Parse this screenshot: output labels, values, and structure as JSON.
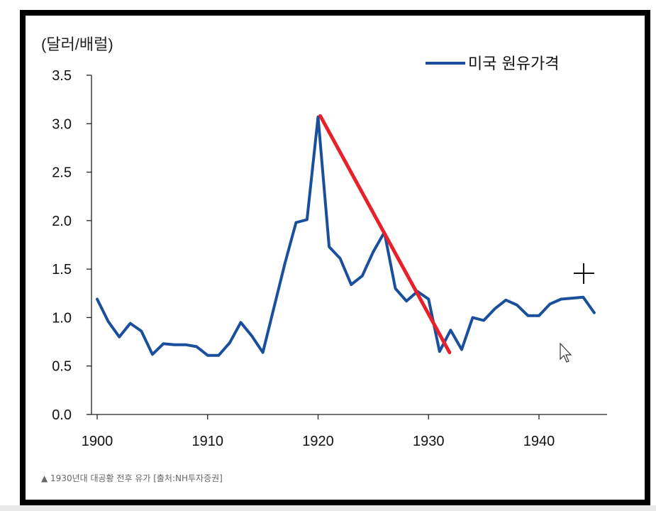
{
  "chart_data": {
    "type": "line",
    "ylabel": "(달러/배럴)",
    "legend": {
      "label": "미국 원유가격",
      "placement": "top-right",
      "color": "#1a4f9c"
    },
    "caption": "▲ 1930년대 대공황 전후 유가 [출처:NH투자증권]",
    "ylim": [
      0,
      3.5
    ],
    "xlim": [
      1900,
      1946
    ],
    "yticks": [
      "0.0",
      "0.5",
      "1.0",
      "1.5",
      "2.0",
      "2.5",
      "3.0",
      "3.5"
    ],
    "xticks": [
      "1900",
      "1910",
      "1920",
      "1930",
      "1940"
    ],
    "grid": false,
    "series": [
      {
        "name": "미국 원유가격",
        "color": "#1a4f9c",
        "x": [
          1900,
          1901,
          1902,
          1903,
          1904,
          1905,
          1906,
          1907,
          1908,
          1909,
          1910,
          1911,
          1912,
          1913,
          1914,
          1915,
          1916,
          1917,
          1918,
          1919,
          1920,
          1921,
          1922,
          1923,
          1924,
          1925,
          1926,
          1927,
          1928,
          1929,
          1930,
          1931,
          1932,
          1933,
          1934,
          1935,
          1936,
          1937,
          1938,
          1939,
          1940,
          1941,
          1942,
          1943,
          1944,
          1945
        ],
        "values": [
          1.19,
          0.96,
          0.8,
          0.94,
          0.86,
          0.62,
          0.73,
          0.72,
          0.72,
          0.7,
          0.61,
          0.61,
          0.74,
          0.95,
          0.81,
          0.64,
          1.1,
          1.56,
          1.98,
          2.01,
          3.07,
          1.73,
          1.61,
          1.34,
          1.43,
          1.68,
          1.88,
          1.3,
          1.17,
          1.27,
          1.19,
          0.65,
          0.87,
          0.67,
          1.0,
          0.97,
          1.09,
          1.18,
          1.13,
          1.02,
          1.02,
          1.14,
          1.19,
          1.2,
          1.21,
          1.05
        ]
      }
    ],
    "annotations": [
      {
        "type": "trend-line",
        "color": "#e8202a",
        "from": [
          1920.2,
          3.08
        ],
        "to": [
          1931.9,
          0.64
        ]
      }
    ]
  }
}
